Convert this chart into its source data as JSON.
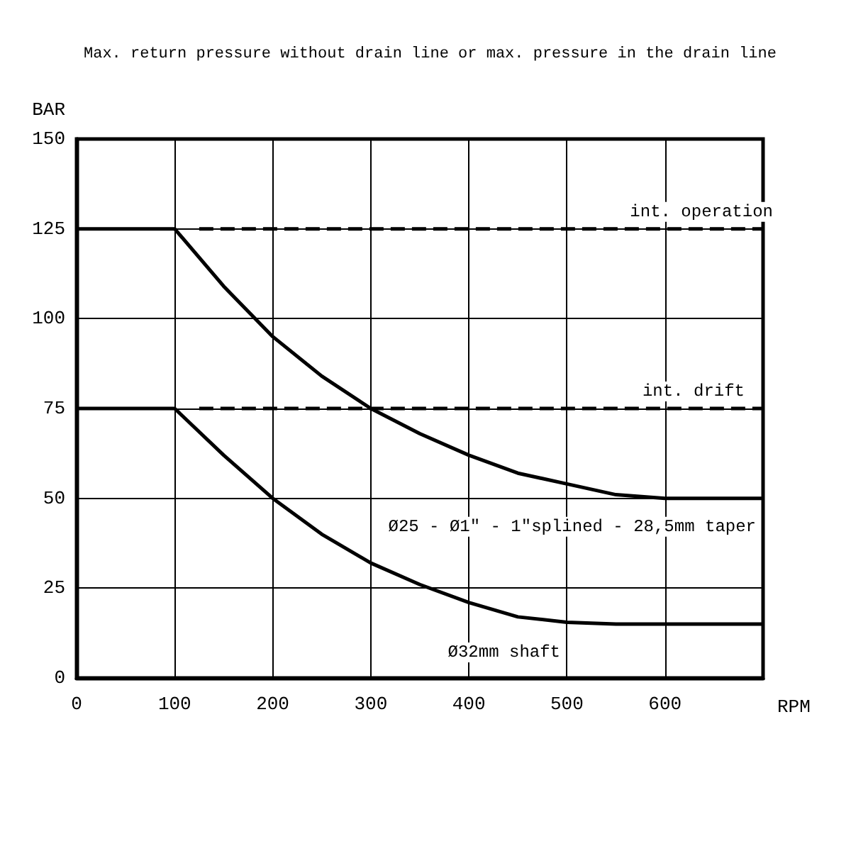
{
  "chart_data": {
    "type": "line",
    "title": "Max. return pressure without drain line or max. pressure in the drain line",
    "xlabel": "RPM",
    "ylabel": "BAR",
    "xlim": [
      0,
      700
    ],
    "xticks": [
      0,
      100,
      200,
      300,
      400,
      500,
      600
    ],
    "ylim": [
      0,
      150
    ],
    "yticks": [
      0,
      25,
      50,
      75,
      100,
      125,
      150
    ],
    "grid": true,
    "legend": false,
    "marker": "none",
    "series": [
      {
        "name": "Ø25 - Ø1\" - 1\"splined - 28,5mm taper",
        "color": "#000000",
        "line_style": "solid",
        "x": [
          0,
          100,
          150,
          200,
          250,
          300,
          350,
          400,
          450,
          500,
          550,
          600,
          700
        ],
        "values": [
          125,
          125,
          109,
          95,
          84,
          75,
          68,
          62,
          57,
          54,
          51,
          50,
          50
        ]
      },
      {
        "name": "Ø32mm shaft",
        "color": "#000000",
        "line_style": "solid",
        "x": [
          0,
          100,
          150,
          200,
          250,
          300,
          350,
          400,
          450,
          500,
          550,
          700
        ],
        "values": [
          75,
          75,
          62,
          50,
          40,
          32,
          26,
          21,
          17,
          15.5,
          15,
          15
        ]
      },
      {
        "name": "int. operation",
        "color": "#000000",
        "line_style": "dashed",
        "x": [
          125,
          700
        ],
        "values": [
          125,
          125
        ]
      },
      {
        "name": "int. drift",
        "color": "#000000",
        "line_style": "dashed",
        "x": [
          125,
          700
        ],
        "values": [
          75,
          75
        ]
      }
    ]
  }
}
